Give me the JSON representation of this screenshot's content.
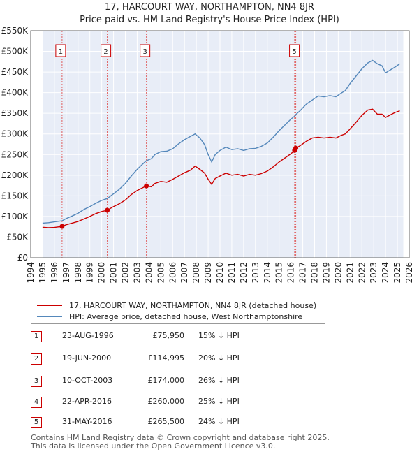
{
  "title": "17, HARCOURT WAY, NORTHAMPTON, NN4 8JR",
  "subtitle": "Price paid vs. HM Land Registry's House Price Index (HPI)",
  "chart_data": {
    "type": "line",
    "title": "17, HARCOURT WAY, NORTHAMPTON, NN4 8JR — Price paid vs. HM Land Registry's House Price Index (HPI)",
    "xlim": [
      1994,
      2026
    ],
    "ylim": [
      0,
      550000
    ],
    "x_ticks": [
      "1994",
      "1995",
      "1996",
      "1997",
      "1998",
      "1999",
      "2000",
      "2001",
      "2002",
      "2003",
      "2004",
      "2005",
      "2006",
      "2007",
      "2008",
      "2009",
      "2010",
      "2011",
      "2012",
      "2013",
      "2014",
      "2015",
      "2016",
      "2017",
      "2018",
      "2019",
      "2020",
      "2021",
      "2022",
      "2023",
      "2024",
      "2025",
      "2026"
    ],
    "y_ticks": [
      {
        "value": 0,
        "label": "£0"
      },
      {
        "value": 50000,
        "label": "£50K"
      },
      {
        "value": 100000,
        "label": "£100K"
      },
      {
        "value": 150000,
        "label": "£150K"
      },
      {
        "value": 200000,
        "label": "£200K"
      },
      {
        "value": 250000,
        "label": "£250K"
      },
      {
        "value": 300000,
        "label": "£300K"
      },
      {
        "value": 350000,
        "label": "£350K"
      },
      {
        "value": 400000,
        "label": "£400K"
      },
      {
        "value": 450000,
        "label": "£450K"
      },
      {
        "value": 500000,
        "label": "£500K"
      },
      {
        "value": 550000,
        "label": "£550K"
      }
    ],
    "series": [
      {
        "name": "17, HARCOURT WAY, NORTHAMPTON, NN4 8JR (detached house)",
        "color": "#cc0000",
        "points": [
          [
            1995.0,
            74000
          ],
          [
            1995.5,
            73000
          ],
          [
            1996.0,
            73500
          ],
          [
            1996.65,
            75950
          ],
          [
            1997.0,
            80000
          ],
          [
            1997.5,
            84000
          ],
          [
            1998.0,
            88000
          ],
          [
            1998.5,
            94000
          ],
          [
            1999.0,
            100000
          ],
          [
            1999.5,
            107000
          ],
          [
            2000.0,
            112000
          ],
          [
            2000.47,
            114995
          ],
          [
            2001.0,
            124000
          ],
          [
            2001.5,
            131000
          ],
          [
            2002.0,
            140000
          ],
          [
            2002.5,
            153000
          ],
          [
            2003.0,
            163000
          ],
          [
            2003.5,
            170000
          ],
          [
            2003.78,
            174000
          ],
          [
            2004.2,
            172000
          ],
          [
            2004.5,
            180000
          ],
          [
            2005.0,
            185000
          ],
          [
            2005.5,
            183000
          ],
          [
            2006.0,
            190000
          ],
          [
            2006.5,
            198000
          ],
          [
            2007.0,
            206000
          ],
          [
            2007.5,
            212000
          ],
          [
            2007.9,
            222000
          ],
          [
            2008.3,
            214000
          ],
          [
            2008.7,
            205000
          ],
          [
            2009.0,
            190000
          ],
          [
            2009.3,
            178000
          ],
          [
            2009.6,
            192000
          ],
          [
            2010.0,
            198000
          ],
          [
            2010.5,
            205000
          ],
          [
            2011.0,
            200000
          ],
          [
            2011.5,
            202000
          ],
          [
            2012.0,
            198000
          ],
          [
            2012.5,
            202000
          ],
          [
            2013.0,
            200000
          ],
          [
            2013.5,
            204000
          ],
          [
            2014.0,
            210000
          ],
          [
            2014.5,
            220000
          ],
          [
            2015.0,
            232000
          ],
          [
            2015.5,
            242000
          ],
          [
            2016.0,
            252000
          ],
          [
            2016.31,
            260000
          ],
          [
            2016.41,
            265500
          ],
          [
            2016.8,
            272000
          ],
          [
            2017.3,
            282000
          ],
          [
            2017.8,
            290000
          ],
          [
            2018.3,
            292000
          ],
          [
            2018.8,
            290000
          ],
          [
            2019.3,
            292000
          ],
          [
            2019.8,
            290000
          ],
          [
            2020.2,
            296000
          ],
          [
            2020.6,
            300000
          ],
          [
            2021.0,
            312000
          ],
          [
            2021.5,
            328000
          ],
          [
            2022.0,
            345000
          ],
          [
            2022.5,
            358000
          ],
          [
            2022.9,
            360000
          ],
          [
            2023.3,
            348000
          ],
          [
            2023.7,
            348000
          ],
          [
            2024.0,
            340000
          ],
          [
            2024.4,
            346000
          ],
          [
            2024.8,
            352000
          ],
          [
            2025.2,
            356000
          ]
        ]
      },
      {
        "name": "HPI: Average price, detached house, West Northamptonshire",
        "color": "#5588bb",
        "points": [
          [
            1995.0,
            84000
          ],
          [
            1995.5,
            85000
          ],
          [
            1996.0,
            87000
          ],
          [
            1996.65,
            89500
          ],
          [
            1997.0,
            95000
          ],
          [
            1997.5,
            101000
          ],
          [
            1998.0,
            108000
          ],
          [
            1998.5,
            117000
          ],
          [
            1999.0,
            124000
          ],
          [
            1999.5,
            132000
          ],
          [
            2000.0,
            139000
          ],
          [
            2000.47,
            143500
          ],
          [
            2001.0,
            155000
          ],
          [
            2001.5,
            166000
          ],
          [
            2002.0,
            180000
          ],
          [
            2002.5,
            198000
          ],
          [
            2003.0,
            214000
          ],
          [
            2003.5,
            228000
          ],
          [
            2003.78,
            235000
          ],
          [
            2004.2,
            240000
          ],
          [
            2004.5,
            250000
          ],
          [
            2005.0,
            257000
          ],
          [
            2005.5,
            258000
          ],
          [
            2006.0,
            264000
          ],
          [
            2006.5,
            276000
          ],
          [
            2007.0,
            286000
          ],
          [
            2007.5,
            294000
          ],
          [
            2007.9,
            300000
          ],
          [
            2008.3,
            290000
          ],
          [
            2008.7,
            274000
          ],
          [
            2009.0,
            250000
          ],
          [
            2009.3,
            232000
          ],
          [
            2009.6,
            250000
          ],
          [
            2010.0,
            260000
          ],
          [
            2010.5,
            268000
          ],
          [
            2011.0,
            262000
          ],
          [
            2011.5,
            264000
          ],
          [
            2012.0,
            260000
          ],
          [
            2012.5,
            264000
          ],
          [
            2013.0,
            265000
          ],
          [
            2013.5,
            270000
          ],
          [
            2014.0,
            278000
          ],
          [
            2014.5,
            292000
          ],
          [
            2015.0,
            308000
          ],
          [
            2015.5,
            322000
          ],
          [
            2016.0,
            336000
          ],
          [
            2016.31,
            343000
          ],
          [
            2016.41,
            347000
          ],
          [
            2016.8,
            357000
          ],
          [
            2017.3,
            372000
          ],
          [
            2017.8,
            382000
          ],
          [
            2018.3,
            392000
          ],
          [
            2018.8,
            390000
          ],
          [
            2019.3,
            393000
          ],
          [
            2019.8,
            390000
          ],
          [
            2020.2,
            398000
          ],
          [
            2020.6,
            405000
          ],
          [
            2021.0,
            422000
          ],
          [
            2021.5,
            440000
          ],
          [
            2022.0,
            458000
          ],
          [
            2022.5,
            472000
          ],
          [
            2022.9,
            478000
          ],
          [
            2023.3,
            470000
          ],
          [
            2023.7,
            465000
          ],
          [
            2024.0,
            448000
          ],
          [
            2024.4,
            455000
          ],
          [
            2024.8,
            462000
          ],
          [
            2025.2,
            470000
          ]
        ]
      }
    ],
    "sales": [
      {
        "label": "1",
        "x": 1996.65,
        "price": 75950
      },
      {
        "label": "2",
        "x": 2000.47,
        "price": 114995
      },
      {
        "label": "3",
        "x": 2003.78,
        "price": 174000
      },
      {
        "label": "4",
        "x": 2016.31,
        "price": 260000
      },
      {
        "label": "5",
        "x": 2016.41,
        "price": 265500
      }
    ],
    "marker_boxes": [
      "1",
      "2",
      "3",
      "5"
    ],
    "shaded_ranges": [
      [
        1994.0,
        1995.0
      ],
      [
        2025.5,
        2026.0
      ]
    ]
  },
  "legend": {
    "items": [
      {
        "label": "17, HARCOURT WAY, NORTHAMPTON, NN4 8JR (detached house)",
        "color": "#cc0000"
      },
      {
        "label": "HPI: Average price, detached house, West Northamptonshire",
        "color": "#5588bb"
      }
    ]
  },
  "transactions": [
    {
      "num": "1",
      "date": "23-AUG-1996",
      "price": "£75,950",
      "hpi": "15% ↓ HPI"
    },
    {
      "num": "2",
      "date": "19-JUN-2000",
      "price": "£114,995",
      "hpi": "20% ↓ HPI"
    },
    {
      "num": "3",
      "date": "10-OCT-2003",
      "price": "£174,000",
      "hpi": "26% ↓ HPI"
    },
    {
      "num": "4",
      "date": "22-APR-2016",
      "price": "£260,000",
      "hpi": "25% ↓ HPI"
    },
    {
      "num": "5",
      "date": "31-MAY-2016",
      "price": "£265,500",
      "hpi": "24% ↓ HPI"
    }
  ],
  "footer": {
    "line1": "Contains HM Land Registry data © Crown copyright and database right 2025.",
    "line2": "This data is licensed under the Open Government Licence v3.0."
  }
}
